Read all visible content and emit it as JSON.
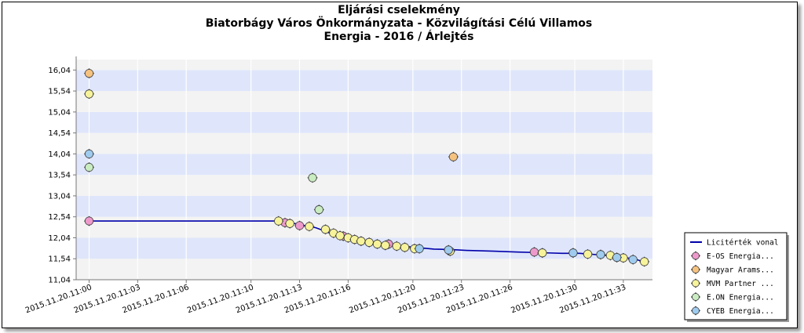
{
  "chart_data": {
    "type": "scatter",
    "title_lines": [
      "Eljárási cselekmény",
      "Biatorbágy Város Önkormányzata - Közvilágítási Célú Villamos",
      "Energia - 2016 / Árlejtés"
    ],
    "ylim": [
      11.04,
      16.29
    ],
    "xlim_minutes": [
      -0.8,
      34.8
    ],
    "y_ticks": [
      "16,04",
      "15,54",
      "15,04",
      "14,54",
      "14,04",
      "13,54",
      "13,04",
      "12,54",
      "12,04",
      "11,54",
      "11,04"
    ],
    "y_tick_values": [
      16.04,
      15.54,
      15.04,
      14.54,
      14.04,
      13.54,
      13.04,
      12.54,
      12.04,
      11.54,
      11.04
    ],
    "x_ticks": [
      "2015.11.20.11:00",
      "2015.11.20.11:03",
      "2015.11.20.11:06",
      "2015.11.20.11:10",
      "2015.11.20.11:13",
      "2015.11.20.11:16",
      "2015.11.20.11:20",
      "2015.11.20.11:23",
      "2015.11.20.11:26",
      "2015.11.20.11:30",
      "2015.11.20.11:33"
    ],
    "x_tick_values": [
      0,
      3,
      6,
      10,
      13,
      16,
      20,
      23,
      26,
      30,
      33
    ],
    "grid": true,
    "legend_position": "bottom-right",
    "line": {
      "name": "Licitérték vonal",
      "color": "#0000aa",
      "x": [
        0,
        11.6,
        12.7,
        14.0,
        15.2,
        16.5,
        17.8,
        19.0,
        20.2,
        21.3,
        22.3,
        23.3,
        25.0,
        26.5,
        28.3,
        29.2,
        30.3,
        31.6,
        32.5,
        33.0,
        33.6,
        34.3
      ],
      "y": [
        12.44,
        12.44,
        12.38,
        12.28,
        12.11,
        11.99,
        11.91,
        11.85,
        11.81,
        11.77,
        11.76,
        11.74,
        11.72,
        11.7,
        11.68,
        11.67,
        11.67,
        11.63,
        11.6,
        11.57,
        11.54,
        11.47
      ]
    },
    "series": [
      {
        "name": "E-OS Energia...",
        "color": "#ee99cc",
        "x": [
          0,
          12.1,
          13.0,
          15.7,
          18.5,
          27.5
        ],
        "y": [
          12.44,
          12.4,
          12.33,
          12.08,
          11.89,
          11.7
        ]
      },
      {
        "name": "Magyar Arams...",
        "color": "#f5c27f",
        "x": [
          0,
          22.5
        ],
        "y": [
          15.96,
          13.97
        ]
      },
      {
        "name": "MVM Partner ...",
        "color": "#f7f39a",
        "x": [
          0,
          11.7,
          12.4,
          13.6,
          14.6,
          15.1,
          15.5,
          16.0,
          16.4,
          16.8,
          17.3,
          17.8,
          18.3,
          19.0,
          19.5,
          20.1,
          22.3,
          28.0,
          30.8,
          32.2,
          33.0,
          34.3
        ],
        "y": [
          15.47,
          12.44,
          12.38,
          12.31,
          12.24,
          12.15,
          12.09,
          12.04,
          12.0,
          11.96,
          11.93,
          11.89,
          11.86,
          11.84,
          11.81,
          11.78,
          11.72,
          11.68,
          11.65,
          11.62,
          11.56,
          11.47
        ]
      },
      {
        "name": "E.ON Energia...",
        "color": "#c9ecc0",
        "x": [
          0,
          13.8,
          14.2
        ],
        "y": [
          13.72,
          13.47,
          12.71
        ]
      },
      {
        "name": "CYEB Energia...",
        "color": "#9fcbee",
        "x": [
          0,
          20.4,
          22.2,
          29.9,
          31.6,
          32.6,
          33.6
        ],
        "y": [
          14.04,
          11.78,
          11.75,
          11.68,
          11.64,
          11.57,
          11.52
        ]
      }
    ]
  }
}
